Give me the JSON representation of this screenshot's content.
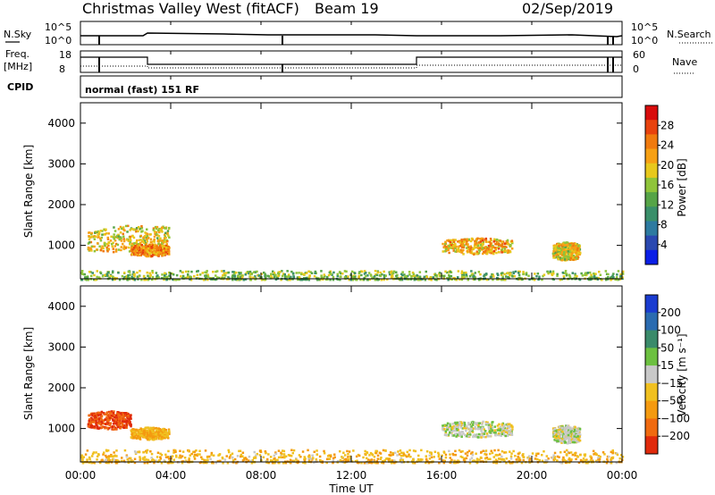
{
  "header": {
    "station": "Christmas Valley West (fitACF)",
    "beam": "Beam 19",
    "date": "02/Sep/2019"
  },
  "top_panel": {
    "left_label_1": "N.Sky",
    "left_label_2": "Freq.",
    "left_label_3": "[MHz]",
    "left_label_4": "CPID",
    "right_label_1": "N.Search",
    "right_label_2": "Nave",
    "noise_ticks_left": [
      "10^5",
      "10^0"
    ],
    "noise_ticks_right": [
      "10^5",
      "10^0"
    ],
    "freq_ticks": [
      "18",
      "8"
    ],
    "nave_ticks": [
      "60",
      "0"
    ],
    "cpid_text": "normal (fast) 151 RF"
  },
  "time_axis": {
    "ticks": [
      "00:00",
      "04:00",
      "08:00",
      "12:00",
      "16:00",
      "20:00",
      "00:00"
    ],
    "label": "Time UT"
  },
  "power_panel": {
    "ylabel": "Slant Range [km]",
    "yticks": [
      "1000",
      "2000",
      "3000",
      "4000"
    ],
    "colorbar_label": "Power [dB]",
    "colorbar_ticks": [
      "4",
      "8",
      "12",
      "16",
      "20",
      "24",
      "28"
    ],
    "colorbar_colors": [
      "#0a1ee6",
      "#2a48b0",
      "#2d7aa0",
      "#3a8f6a",
      "#56a447",
      "#8fc43a",
      "#e8c81c",
      "#f6a014",
      "#f07a0f",
      "#e8420e",
      "#d80c0c"
    ]
  },
  "velocity_panel": {
    "ylabel": "Slant Range [km]",
    "yticks": [
      "1000",
      "2000",
      "3000",
      "4000"
    ],
    "colorbar_label": "Velocity [m s⁻¹]",
    "colorbar_ticks": [
      "200",
      "100",
      "50",
      "15",
      "−15",
      "−50",
      "−100",
      "−200"
    ],
    "colorbar_colors": [
      "#1a3cd0",
      "#2a6bb0",
      "#3a8a6a",
      "#6cc040",
      "#c8c8c8",
      "#f0c020",
      "#f49a10",
      "#f06a10",
      "#e02a0c"
    ]
  },
  "chart_data": [
    {
      "type": "heatmap",
      "title": "Christmas Valley West (fitACF) Beam 19 02/Sep/2019",
      "xlabel": "Time UT",
      "ylabel": "Slant Range [km]",
      "xlim": [
        "00:00",
        "24:00"
      ],
      "ylim": [
        180,
        4500
      ],
      "colorbar": {
        "label": "Power [dB]",
        "range": [
          0,
          30
        ]
      },
      "regions": [
        {
          "t_start": 0.3,
          "t_end": 3.9,
          "range_start": 800,
          "range_end": 1450,
          "value": 18
        },
        {
          "t_start": 2.2,
          "t_end": 3.9,
          "range_start": 750,
          "range_end": 1050,
          "value": 22
        },
        {
          "t_start": 16.0,
          "t_end": 19.1,
          "range_start": 800,
          "range_end": 1200,
          "value": 20
        },
        {
          "t_start": 20.9,
          "t_end": 22.1,
          "range_start": 650,
          "range_end": 1100,
          "value": 18
        },
        {
          "t_start": 0.0,
          "t_end": 24.0,
          "range_start": 180,
          "range_end": 400,
          "value": 14
        }
      ]
    },
    {
      "type": "heatmap",
      "title": "",
      "xlabel": "Time UT",
      "ylabel": "Slant Range [km]",
      "xlim": [
        "00:00",
        "24:00"
      ],
      "ylim": [
        180,
        4500
      ],
      "colorbar": {
        "label": "Velocity [m s⁻¹]",
        "range": [
          -250,
          250
        ]
      },
      "regions": [
        {
          "t_start": 0.3,
          "t_end": 2.2,
          "range_start": 1000,
          "range_end": 1450,
          "value": -200
        },
        {
          "t_start": 2.2,
          "t_end": 3.9,
          "range_start": 750,
          "range_end": 1050,
          "value": -50
        },
        {
          "t_start": 16.0,
          "t_end": 19.1,
          "range_start": 800,
          "range_end": 1200,
          "value": 0
        },
        {
          "t_start": 20.9,
          "t_end": 22.1,
          "range_start": 650,
          "range_end": 1100,
          "value": 0
        },
        {
          "t_start": 0.0,
          "t_end": 24.0,
          "range_start": 180,
          "range_end": 500,
          "value": -40
        }
      ]
    }
  ]
}
